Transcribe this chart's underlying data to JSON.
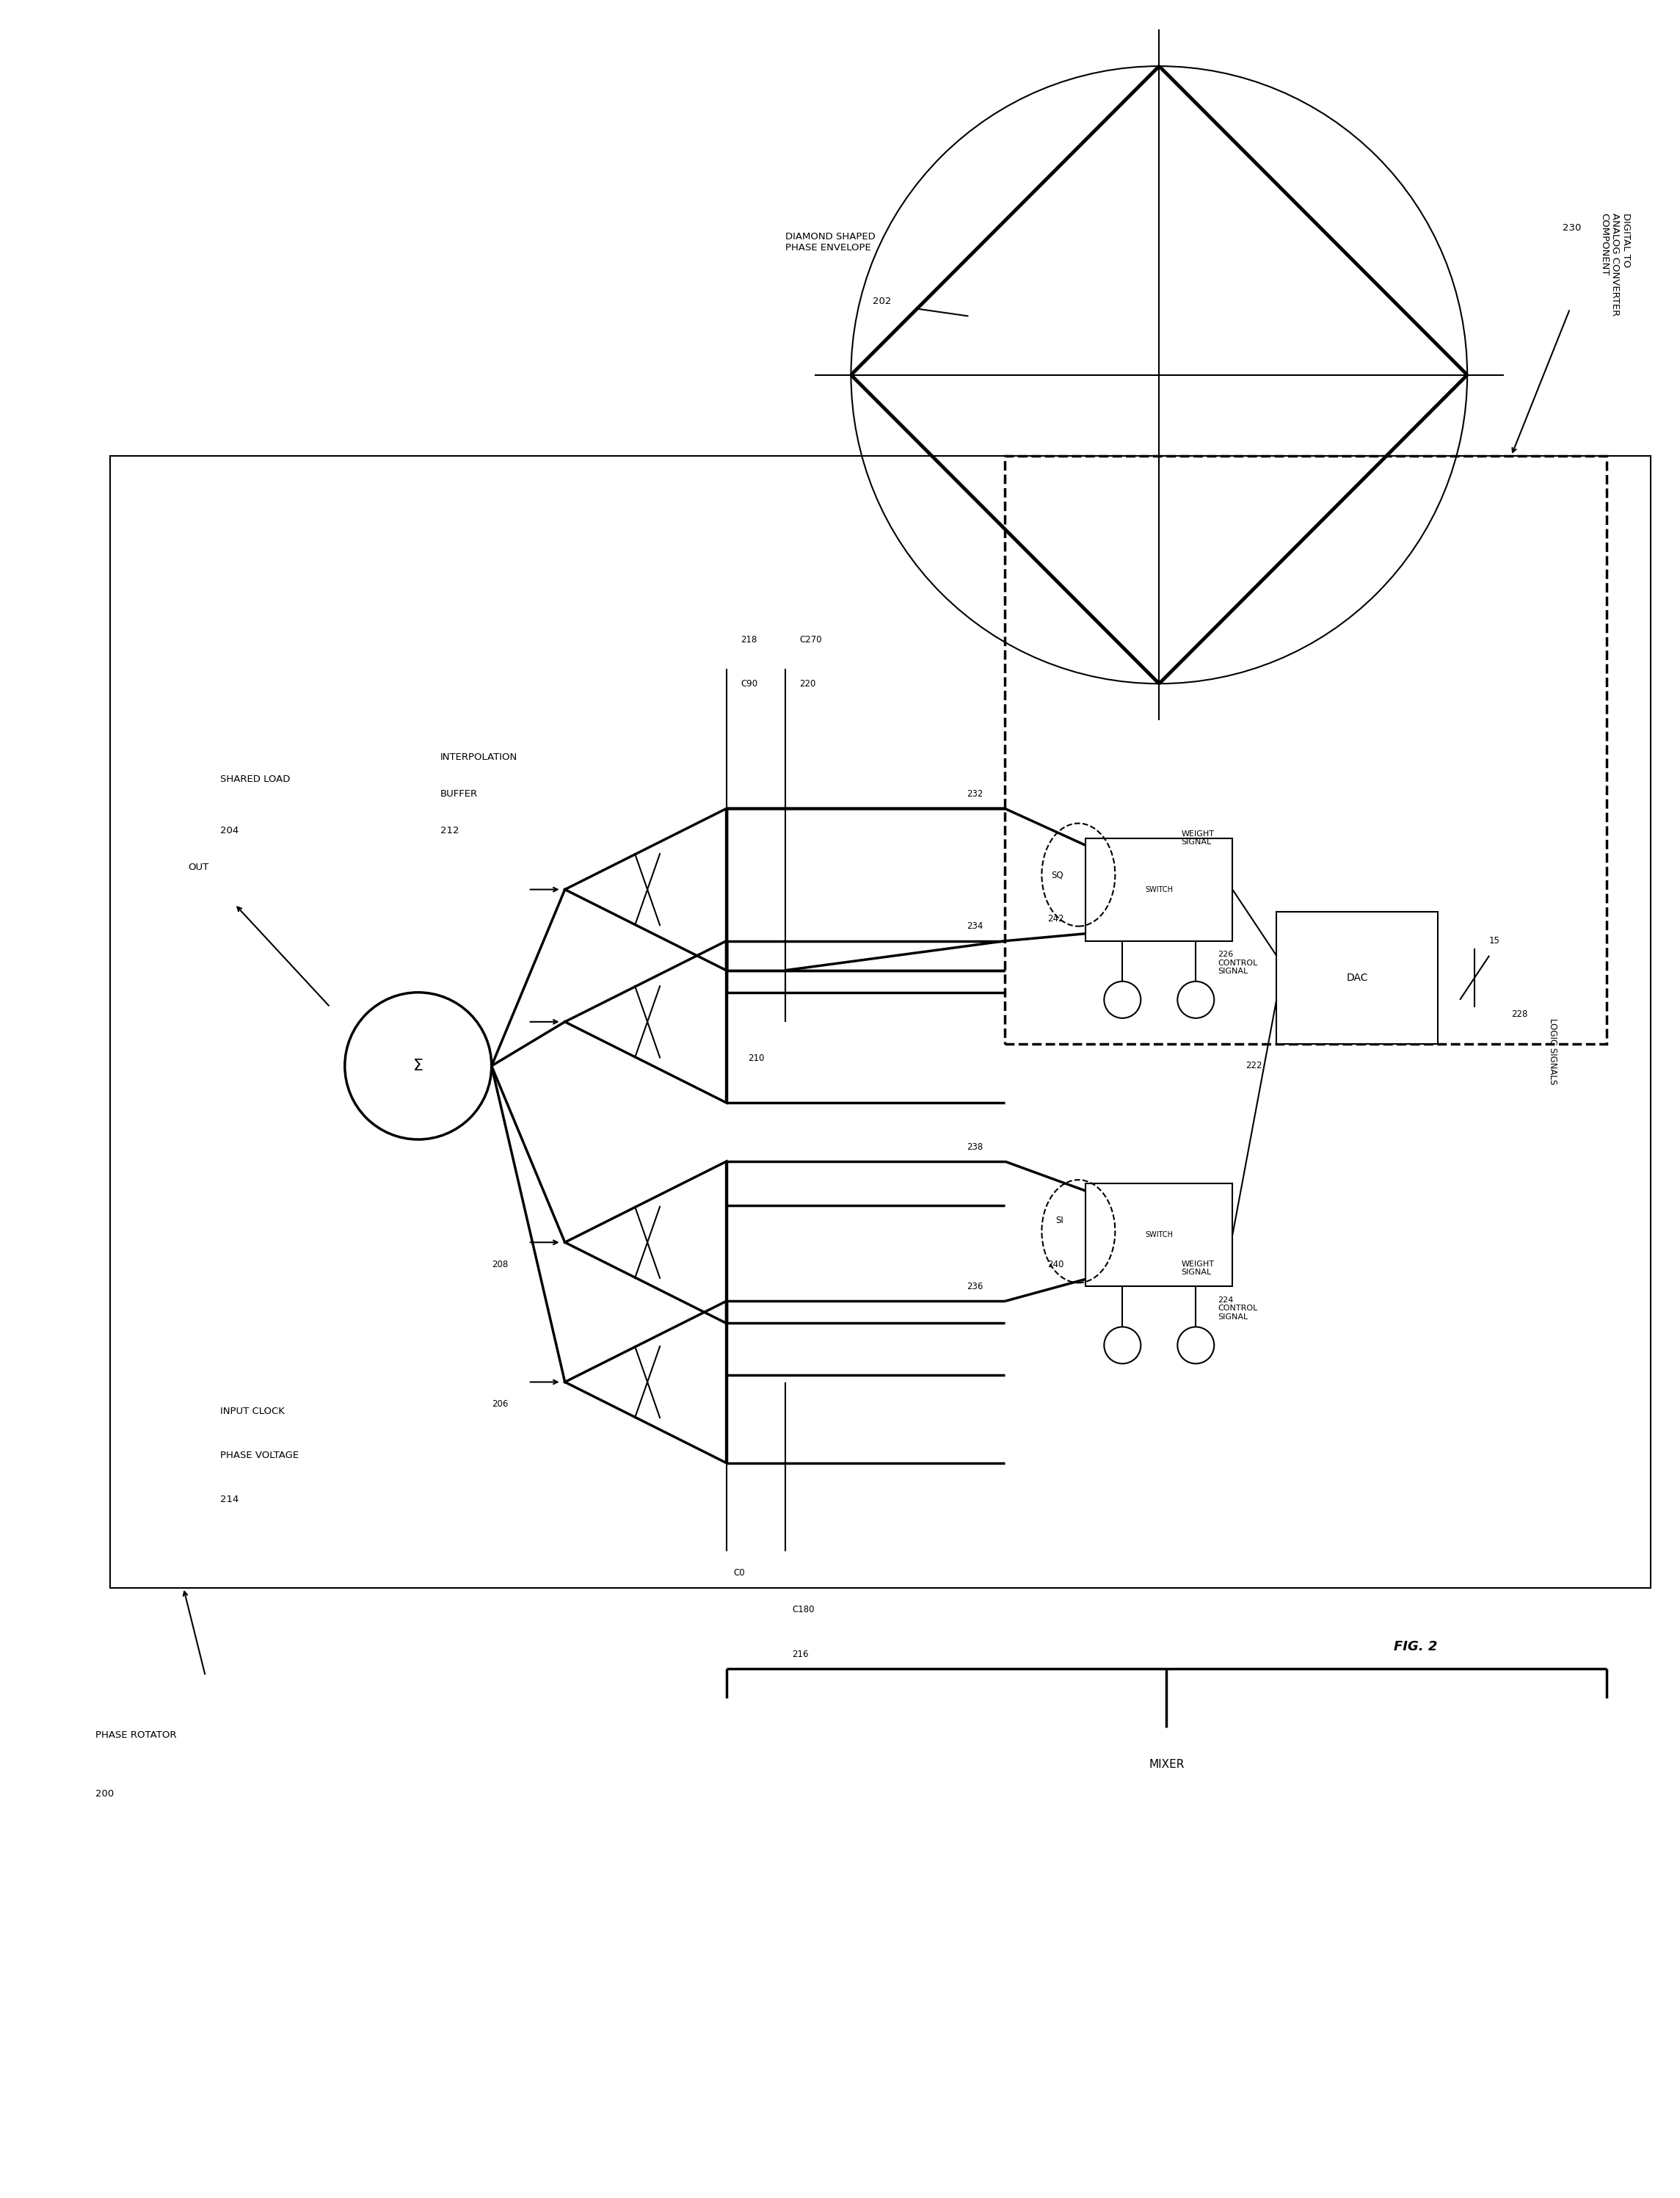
{
  "bg_color": "#ffffff",
  "title": "FIG. 2",
  "labels": {
    "phase_rotator": "PHASE ROTATOR",
    "phase_rotator_num": "200",
    "shared_load": "SHARED LOAD",
    "shared_load_num": "204",
    "interpolation_buffer": "INTERPOLATION\nBUFFER",
    "interpolation_buffer_num": "212",
    "input_clock": "INPUT CLOCK\nPHASE VOLTAGE",
    "input_clock_num": "214",
    "diamond_label": "DIAMOND SHAPED\nPHASE ENVELOPE",
    "diamond_num": "202",
    "dac_component": "DIGITAL TO\nANALOG CONVERTER\nCOMPONENT",
    "dac_component_num": "230",
    "mixer": "MIXER",
    "out": "OUT",
    "n218": "218",
    "nC90": "C90",
    "nC270": "C270",
    "n220": "220",
    "n232": "232",
    "n234": "234",
    "n238": "238",
    "n236": "236",
    "n210": "210",
    "n208": "208",
    "n206": "206",
    "n216": "216",
    "nC0": "C0",
    "nC180": "C180",
    "n222": "222",
    "n224": "224",
    "n226": "226",
    "n228": "228",
    "n240": "240",
    "n242": "242",
    "nSI": "SI",
    "nSQ": "SQ",
    "n15": "15",
    "ctrl226": "226\nCONTROL\nSIGNAL",
    "ctrl224": "224\nCONTROL\nSIGNAL",
    "wt_sig_top": "WEIGHT\nSIGNAL",
    "wt_sig_bot": "WEIGHT\nSIGNAL",
    "logic_signals": "LOGIC SIGNALS",
    "n228b": "228",
    "dac": "DAC",
    "switch": "SWITCH"
  },
  "lw_thin": 1.5,
  "lw_med": 2.5,
  "lw_thick": 3.5
}
